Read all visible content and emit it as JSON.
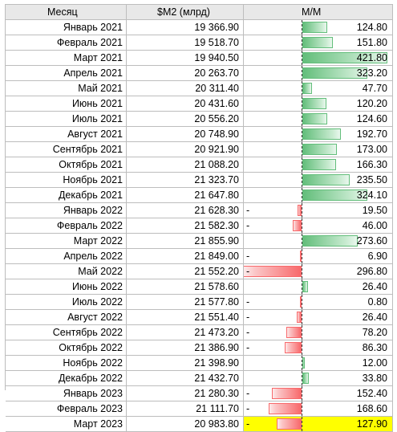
{
  "header": {
    "col1": "Месяц",
    "col2": "$M2 (млрд)",
    "col3": "М/М"
  },
  "colors": {
    "positive": "#63be7b",
    "negative": "#f8696b",
    "highlight": "#ffff00",
    "header_bg": "#e8e8e8"
  },
  "rows": [
    {
      "month": "Январь 2021",
      "m2": "19 366.90",
      "mm_sign": "",
      "mm": "124.80",
      "mm_value": 124.8
    },
    {
      "month": "Февраль 2021",
      "m2": "19 518.70",
      "mm_sign": "",
      "mm": "151.80",
      "mm_value": 151.8
    },
    {
      "month": "Март 2021",
      "m2": "19 940.50",
      "mm_sign": "",
      "mm": "421.80",
      "mm_value": 421.8
    },
    {
      "month": "Апрель 2021",
      "m2": "20 263.70",
      "mm_sign": "",
      "mm": "323.20",
      "mm_value": 323.2
    },
    {
      "month": "Май 2021",
      "m2": "20 311.40",
      "mm_sign": "",
      "mm": "47.70",
      "mm_value": 47.7
    },
    {
      "month": "Июнь 2021",
      "m2": "20 431.60",
      "mm_sign": "",
      "mm": "120.20",
      "mm_value": 120.2
    },
    {
      "month": "Июль 2021",
      "m2": "20 556.20",
      "mm_sign": "",
      "mm": "124.60",
      "mm_value": 124.6
    },
    {
      "month": "Август 2021",
      "m2": "20 748.90",
      "mm_sign": "",
      "mm": "192.70",
      "mm_value": 192.7
    },
    {
      "month": "Сентябрь 2021",
      "m2": "20 921.90",
      "mm_sign": "",
      "mm": "173.00",
      "mm_value": 173.0
    },
    {
      "month": "Октябрь 2021",
      "m2": "21 088.20",
      "mm_sign": "",
      "mm": "166.30",
      "mm_value": 166.3
    },
    {
      "month": "Ноябрь 2021",
      "m2": "21 323.70",
      "mm_sign": "",
      "mm": "235.50",
      "mm_value": 235.5
    },
    {
      "month": "Декабрь 2021",
      "m2": "21 647.80",
      "mm_sign": "",
      "mm": "324.10",
      "mm_value": 324.1
    },
    {
      "month": "Январь 2022",
      "m2": "21 628.30",
      "mm_sign": "-",
      "mm": "19.50",
      "mm_value": -19.5
    },
    {
      "month": "Февраль 2022",
      "m2": "21 582.30",
      "mm_sign": "-",
      "mm": "46.00",
      "mm_value": -46.0
    },
    {
      "month": "Март 2022",
      "m2": "21 855.90",
      "mm_sign": "",
      "mm": "273.60",
      "mm_value": 273.6
    },
    {
      "month": "Апрель 2022",
      "m2": "21 849.00",
      "mm_sign": "-",
      "mm": "6.90",
      "mm_value": -6.9
    },
    {
      "month": "Май 2022",
      "m2": "21 552.20",
      "mm_sign": "-",
      "mm": "296.80",
      "mm_value": -296.8
    },
    {
      "month": "Июнь 2022",
      "m2": "21 578.60",
      "mm_sign": "",
      "mm": "26.40",
      "mm_value": 26.4
    },
    {
      "month": "Июль 2022",
      "m2": "21 577.80",
      "mm_sign": "-",
      "mm": "0.80",
      "mm_value": -0.8
    },
    {
      "month": "Август 2022",
      "m2": "21 551.40",
      "mm_sign": "-",
      "mm": "26.40",
      "mm_value": -26.4
    },
    {
      "month": "Сентябрь 2022",
      "m2": "21 473.20",
      "mm_sign": "-",
      "mm": "78.20",
      "mm_value": -78.2
    },
    {
      "month": "Октябрь 2022",
      "m2": "21 386.90",
      "mm_sign": "-",
      "mm": "86.30",
      "mm_value": -86.3
    },
    {
      "month": "Ноябрь 2022",
      "m2": "21 398.90",
      "mm_sign": "",
      "mm": "12.00",
      "mm_value": 12.0
    },
    {
      "month": "Декабрь 2022",
      "m2": "21 432.70",
      "mm_sign": "",
      "mm": "33.80",
      "mm_value": 33.8
    },
    {
      "month": "Январь 2023",
      "m2": "21 280.30",
      "mm_sign": "-",
      "mm": "152.40",
      "mm_value": -152.4
    },
    {
      "month": "Февраль 2023",
      "m2": "21 111.70",
      "mm_sign": "-",
      "mm": "168.60",
      "mm_value": -168.6
    },
    {
      "month": "Март 2023",
      "m2": "20 983.80",
      "mm_sign": "-",
      "mm": "127.90",
      "mm_value": -127.9,
      "highlight": true
    }
  ]
}
